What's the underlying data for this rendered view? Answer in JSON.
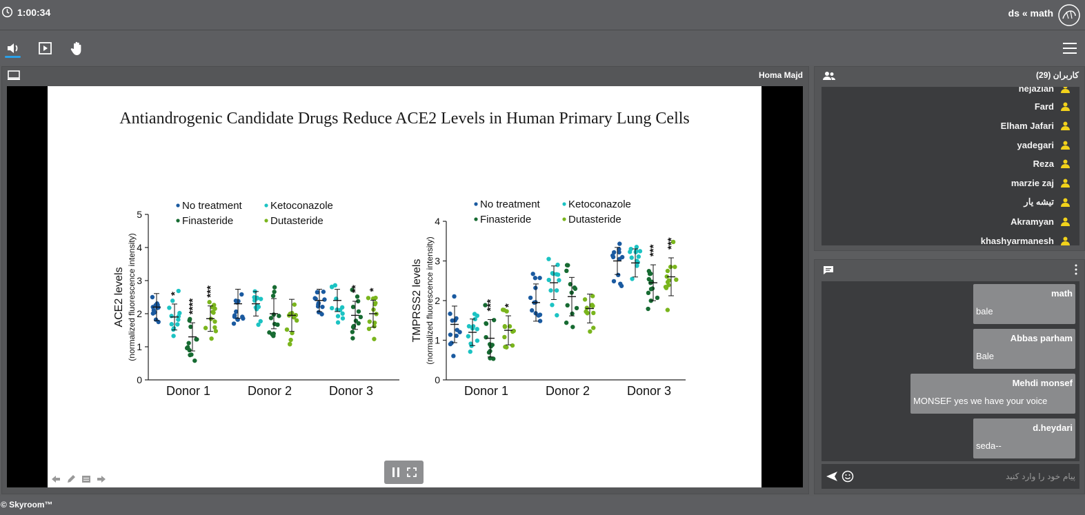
{
  "header": {
    "timer": "1:00:34",
    "room_title": "ds « math",
    "clock_icon": "clock-icon",
    "logo_icon": "skyroom-logo"
  },
  "toolbar": {
    "items": [
      {
        "name": "volume",
        "icon": "volume-icon"
      },
      {
        "name": "play",
        "icon": "play-icon"
      },
      {
        "name": "raise-hand",
        "icon": "hand-icon"
      }
    ],
    "menu_icon": "hamburger-menu-icon"
  },
  "content": {
    "presenter": "Homa Majd",
    "slide": {
      "title": "Antiandrogenic Candidate Drugs Reduce ACE2 Levels in Human Primary Lung Cells"
    }
  },
  "chart_data": [
    {
      "type": "scatter",
      "title": "",
      "ylabel": "ACE2 levels",
      "ylabel_sub": "(normalized fluorescence intensity)",
      "ylim": [
        0,
        5
      ],
      "yticks": [
        "0",
        "1",
        "2",
        "3",
        "4",
        "5"
      ],
      "categories": [
        "Donor 1",
        "Donor 2",
        "Donor 3"
      ],
      "legend": [
        "No treatment",
        "Ketoconazole",
        "Finasteride",
        "Dutasteride"
      ],
      "series": [
        {
          "name": "No treatment",
          "color": "#1a5aa0",
          "means": [
            2.2,
            2.3,
            2.4
          ]
        },
        {
          "name": "Ketoconazole",
          "color": "#1cc3c3",
          "means": [
            1.9,
            2.3,
            2.4
          ]
        },
        {
          "name": "Finasteride",
          "color": "#176b32",
          "means": [
            1.3,
            2.0,
            1.95
          ]
        },
        {
          "name": "Dutasteride",
          "color": "#7ab51d",
          "means": [
            1.85,
            1.95,
            2.0
          ]
        }
      ],
      "significance": [
        [
          "",
          "*",
          "****",
          "***"
        ],
        [
          "",
          "",
          "",
          ""
        ],
        [
          "",
          "",
          "**",
          "*"
        ]
      ]
    },
    {
      "type": "scatter",
      "title": "",
      "ylabel": "TMPRSS2 levels",
      "ylabel_sub": "(normalized fluorescence intensity)",
      "ylim": [
        0,
        4
      ],
      "yticks": [
        "0",
        "1",
        "2",
        "3",
        "4"
      ],
      "categories": [
        "Donor 1",
        "Donor 2",
        "Donor 3"
      ],
      "legend": [
        "No treatment",
        "Ketoconazole",
        "Finasteride",
        "Dutasteride"
      ],
      "series": [
        {
          "name": "No treatment",
          "color": "#1a5aa0",
          "means": [
            1.4,
            1.95,
            3.0
          ]
        },
        {
          "name": "Ketoconazole",
          "color": "#1cc3c3",
          "means": [
            1.2,
            2.45,
            2.95
          ]
        },
        {
          "name": "Finasteride",
          "color": "#176b32",
          "means": [
            1.05,
            2.1,
            2.45
          ]
        },
        {
          "name": "Dutasteride",
          "color": "#7ab51d",
          "means": [
            1.25,
            1.8,
            2.6
          ]
        }
      ],
      "significance": [
        [
          "",
          "",
          "***",
          "*"
        ],
        [
          "",
          "",
          "",
          ""
        ],
        [
          "",
          "",
          "***",
          "***"
        ]
      ]
    }
  ],
  "users": {
    "title": "کاربران (29)",
    "list": [
      "nejazian",
      "Fard",
      "Elham Jafari",
      "yadegari",
      "Reza",
      "marzie zaj",
      "تیشه یار",
      "Akramyan",
      "khashyarmanesh"
    ]
  },
  "chat": {
    "messages": [
      {
        "sender": "math",
        "text": "bale"
      },
      {
        "sender": "Abbas parham",
        "text": "Bale"
      },
      {
        "sender": "Mehdi monsef",
        "text": "MONSEF yes we have your voice"
      },
      {
        "sender": "d.heydari",
        "text": "seda--"
      }
    ],
    "input_placeholder": "پیام خود را وارد کنید",
    "send_icon": "send-icon",
    "emoji_icon": "emoji-icon"
  },
  "footer": {
    "copyright": "© Skyroom™"
  },
  "colors": {
    "accent": "#2aa0e8",
    "user_icon": "#f2d21b"
  }
}
